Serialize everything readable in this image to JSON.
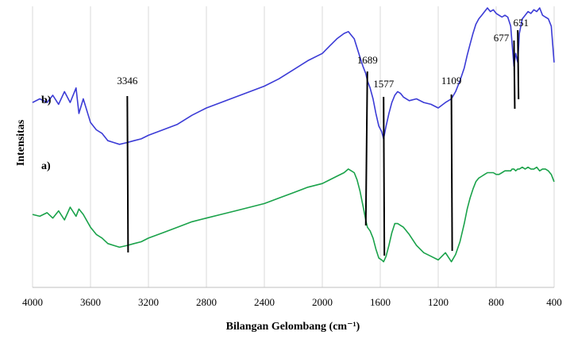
{
  "chart_data": {
    "type": "line",
    "xlabel": "Bilangan Gelombang (cm⁻¹)",
    "ylabel": "Intensitas",
    "xlim": [
      4000,
      400
    ],
    "x_reversed": true,
    "y_axis_ticks": false,
    "grid": "vertical",
    "x_ticks": [
      4000,
      3600,
      3200,
      2800,
      2400,
      2000,
      1600,
      1200,
      800,
      400
    ],
    "series": [
      {
        "name": "b)",
        "color": "#3b3bd6",
        "x": [
          4000,
          3950,
          3900,
          3860,
          3820,
          3780,
          3740,
          3700,
          3680,
          3650,
          3600,
          3560,
          3520,
          3480,
          3440,
          3400,
          3346,
          3300,
          3250,
          3200,
          3100,
          3000,
          2900,
          2800,
          2700,
          2600,
          2500,
          2400,
          2300,
          2200,
          2100,
          2000,
          1950,
          1900,
          1850,
          1820,
          1800,
          1780,
          1760,
          1740,
          1720,
          1700,
          1689,
          1670,
          1650,
          1630,
          1610,
          1590,
          1577,
          1560,
          1540,
          1520,
          1500,
          1480,
          1460,
          1440,
          1400,
          1350,
          1300,
          1250,
          1200,
          1150,
          1109,
          1080,
          1050,
          1020,
          1000,
          980,
          960,
          940,
          920,
          900,
          880,
          860,
          840,
          820,
          800,
          780,
          760,
          740,
          720,
          700,
          690,
          677,
          665,
          651,
          640,
          620,
          600,
          580,
          560,
          540,
          520,
          500,
          480,
          460,
          440,
          420,
          400
        ],
        "y": [
          58,
          60,
          58,
          62,
          57,
          64,
          58,
          66,
          52,
          60,
          47,
          43,
          41,
          37,
          36,
          35,
          36,
          37,
          38,
          40,
          43,
          46,
          51,
          55,
          58,
          61,
          64,
          67,
          71,
          76,
          81,
          85,
          89,
          93,
          96,
          97,
          95,
          93,
          88,
          83,
          78,
          74,
          70,
          66,
          60,
          52,
          45,
          42,
          38,
          45,
          52,
          58,
          62,
          64,
          63,
          61,
          59,
          60,
          58,
          57,
          55,
          58,
          60,
          64,
          70,
          77,
          84,
          90,
          96,
          101,
          104,
          106,
          108,
          110,
          108,
          109,
          107,
          106,
          105,
          106,
          105,
          100,
          90,
          78,
          85,
          80,
          96,
          104,
          106,
          108,
          107,
          109,
          108,
          110,
          106,
          105,
          104,
          100,
          80
        ]
      },
      {
        "name": "a)",
        "color": "#1aa24a",
        "x": [
          4000,
          3950,
          3900,
          3860,
          3820,
          3780,
          3740,
          3700,
          3680,
          3650,
          3600,
          3560,
          3520,
          3480,
          3440,
          3400,
          3346,
          3300,
          3250,
          3200,
          3100,
          3000,
          2900,
          2800,
          2700,
          2600,
          2500,
          2400,
          2300,
          2200,
          2100,
          2000,
          1950,
          1900,
          1850,
          1820,
          1800,
          1780,
          1760,
          1740,
          1720,
          1700,
          1689,
          1670,
          1650,
          1630,
          1610,
          1590,
          1577,
          1560,
          1540,
          1520,
          1500,
          1480,
          1460,
          1440,
          1400,
          1350,
          1300,
          1250,
          1200,
          1150,
          1109,
          1080,
          1050,
          1020,
          1000,
          980,
          960,
          940,
          920,
          900,
          880,
          860,
          840,
          820,
          800,
          780,
          760,
          740,
          720,
          700,
          690,
          677,
          665,
          651,
          640,
          620,
          600,
          580,
          560,
          540,
          520,
          500,
          480,
          460,
          440,
          420,
          400
        ],
        "y": [
          27,
          26,
          28,
          25,
          29,
          24,
          31,
          26,
          30,
          27,
          20,
          16,
          14,
          11,
          10,
          9,
          10,
          11,
          12,
          14,
          17,
          20,
          23,
          25,
          27,
          29,
          31,
          33,
          36,
          39,
          42,
          44,
          46,
          48,
          50,
          52,
          51,
          50,
          46,
          40,
          32,
          24,
          20,
          18,
          14,
          8,
          3,
          2,
          1,
          4,
          10,
          17,
          22,
          22,
          21,
          20,
          16,
          10,
          6,
          4,
          2,
          6,
          1,
          5,
          12,
          22,
          30,
          36,
          41,
          45,
          47,
          48,
          49,
          50,
          50,
          50,
          49,
          49,
          50,
          51,
          51,
          51,
          52,
          52,
          51,
          52,
          52,
          53,
          52,
          53,
          52,
          52,
          53,
          51,
          52,
          52,
          51,
          49,
          45
        ]
      }
    ],
    "annotations": [
      {
        "label": "3346",
        "x": 3346,
        "series": "b)"
      },
      {
        "label": "1689",
        "x": 1689,
        "series": "b)"
      },
      {
        "label": "1577",
        "x": 1577,
        "series": "b)"
      },
      {
        "label": "1109",
        "x": 1109,
        "series": "b)"
      },
      {
        "label": "677",
        "x": 677,
        "series": "b)"
      },
      {
        "label": "651",
        "x": 651,
        "series": "b)"
      }
    ]
  }
}
